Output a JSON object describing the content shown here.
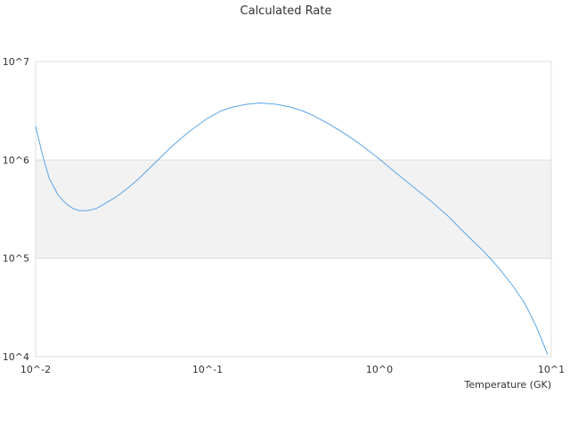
{
  "chart_data": {
    "type": "line",
    "title": "Calculated Rate",
    "xlabel": "Temperature (GK)",
    "ylabel": "",
    "xscale": "log",
    "yscale": "log",
    "xlim": [
      0.01,
      10
    ],
    "ylim": [
      10000,
      10000000
    ],
    "x_tick_labels": [
      "10^-2",
      "10^-1",
      "10^0",
      "10^1"
    ],
    "y_tick_labels": [
      "10^4",
      "10^5",
      "10^6",
      "10^7"
    ],
    "grid": true,
    "alternating_bands": true,
    "legend": "none",
    "colors": {
      "line": "#5aa5e6",
      "band": "#f2f2f2",
      "grid": "#dddddd",
      "border": "#dddddd"
    },
    "series": [
      {
        "x": [
          0.01,
          0.011,
          0.012,
          0.0135,
          0.015,
          0.0165,
          0.018,
          0.02,
          0.0225,
          0.025,
          0.03,
          0.035,
          0.04,
          0.05,
          0.06,
          0.07,
          0.08,
          0.1,
          0.12,
          0.14,
          0.17,
          0.2,
          0.25,
          0.3,
          0.35,
          0.4,
          0.5,
          0.6,
          0.7,
          0.8,
          1.0,
          1.2,
          1.5,
          2.0,
          2.5,
          3.0,
          3.5,
          4.0,
          4.5,
          5.0,
          6.0,
          7.0,
          8.0,
          9.0,
          9.5
        ],
        "y": [
          2200000,
          1100000,
          650000,
          440000,
          360000,
          320000,
          305000,
          305000,
          320000,
          355000,
          430000,
          530000,
          650000,
          950000,
          1300000,
          1650000,
          2000000,
          2650000,
          3150000,
          3450000,
          3680000,
          3790000,
          3680000,
          3460000,
          3190000,
          2900000,
          2360000,
          1950000,
          1630000,
          1380000,
          1020000,
          780000,
          570000,
          380000,
          270000,
          195000,
          150000,
          120000,
          96000,
          78000,
          52000,
          35000,
          22000,
          13500,
          10500
        ]
      }
    ]
  }
}
